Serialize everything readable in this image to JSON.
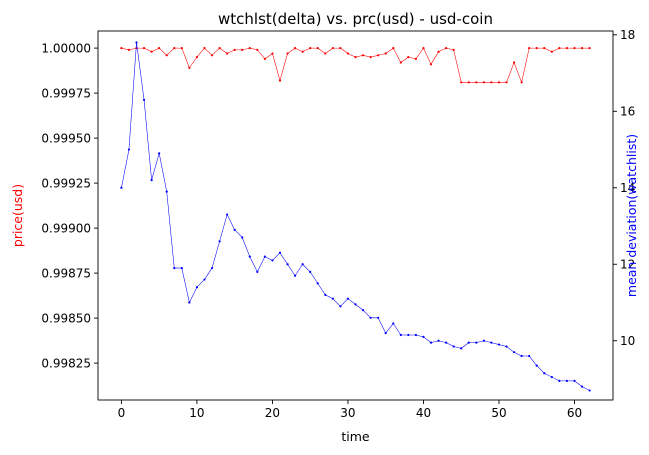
{
  "chart_data": {
    "type": "line",
    "title": "wtchlst(delta) vs. prc(usd) - usd-coin",
    "xlabel": "time",
    "ylabel_left": "price(usd)",
    "ylabel_right": "mean deviation(watchlist)",
    "xlim": [
      -3.1,
      65.1
    ],
    "ylim_left": [
      0.998045,
      1.000095
    ],
    "ylim_right": [
      8.45,
      18.1
    ],
    "x_ticks": [
      0,
      10,
      20,
      30,
      40,
      50,
      60
    ],
    "y_left_ticks": [
      0.99825,
      0.9985,
      0.99875,
      0.999,
      0.99925,
      0.9995,
      0.99975,
      1.0
    ],
    "y_left_tick_labels": [
      "0.99825",
      "0.99850",
      "0.99875",
      "0.99900",
      "0.99925",
      "0.99950",
      "0.99975",
      "1.00000"
    ],
    "y_right_ticks": [
      10,
      12,
      14,
      16,
      18
    ],
    "grid": false,
    "legend": "none",
    "colors": {
      "left_series": "#ff0000",
      "right_series": "#0000ff",
      "axes": "#000000"
    },
    "series": [
      {
        "axis": "left",
        "values": [
          1.0,
          0.99999,
          1.0,
          1.0,
          0.99998,
          1.0,
          0.99996,
          1.0,
          1.0,
          0.99989,
          0.99995,
          1.0,
          0.99996,
          1.0,
          0.99997,
          0.99999,
          0.99999,
          1.0,
          0.99999,
          0.99994,
          0.99997,
          0.99982,
          0.99997,
          1.0,
          0.99998,
          1.0,
          1.0,
          0.99997,
          1.0,
          1.0,
          0.99997,
          0.99995,
          0.99996,
          0.99995,
          0.99996,
          0.99997,
          1.0,
          0.99992,
          0.99995,
          0.99994,
          1.0,
          0.99991,
          0.99998,
          1.0,
          0.99999,
          0.99981,
          0.99981,
          0.99981,
          0.99981,
          0.99981,
          0.99981,
          0.99981,
          0.99992,
          0.99981,
          1.0,
          1.0,
          1.0,
          0.99998,
          1.0,
          1.0,
          1.0,
          1.0,
          1.0
        ]
      },
      {
        "axis": "right",
        "values": [
          14.0,
          15.0,
          17.8,
          16.3,
          14.2,
          14.9,
          13.9,
          11.9,
          11.9,
          11.0,
          11.4,
          11.6,
          11.9,
          12.6,
          13.3,
          12.9,
          12.7,
          12.2,
          11.8,
          12.2,
          12.1,
          12.3,
          12.0,
          11.7,
          12.0,
          11.8,
          11.5,
          11.2,
          11.1,
          10.9,
          11.1,
          10.95,
          10.8,
          10.6,
          10.6,
          10.2,
          10.45,
          10.15,
          10.15,
          10.15,
          10.1,
          9.95,
          10.0,
          9.95,
          9.85,
          9.8,
          9.95,
          9.95,
          10.0,
          9.95,
          9.9,
          9.85,
          9.7,
          9.6,
          9.6,
          9.35,
          9.15,
          9.05,
          8.95,
          8.95,
          8.95,
          8.8,
          8.7
        ]
      }
    ]
  }
}
